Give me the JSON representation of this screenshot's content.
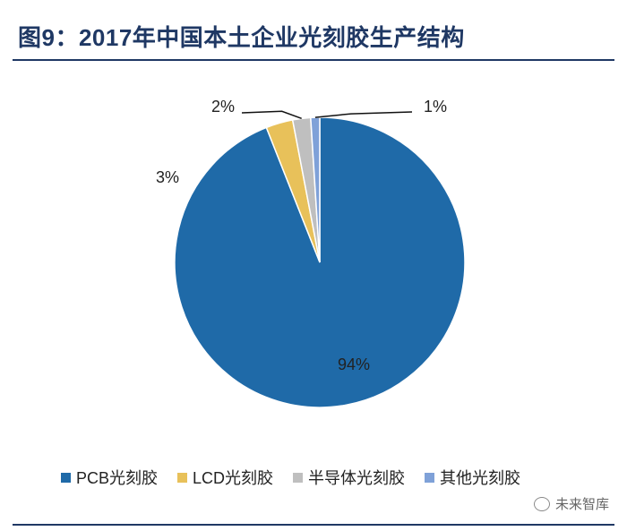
{
  "header": {
    "title": "图9：2017年中国本土企业光刻胶生产结构"
  },
  "chart_data": {
    "type": "pie",
    "title": "图9：2017年中国本土企业光刻胶生产结构",
    "slices": [
      {
        "label": "PCB光刻胶",
        "value": 94,
        "display": "94%",
        "color": "#1f6aa8"
      },
      {
        "label": "LCD光刻胶",
        "value": 3,
        "display": "3%",
        "color": "#e8c15a"
      },
      {
        "label": "半导体光刻胶",
        "value": 2,
        "display": "2%",
        "color": "#bfbfbf"
      },
      {
        "label": "其他光刻胶",
        "value": 1,
        "display": "1%",
        "color": "#7fa1d8"
      }
    ],
    "legend_position": "bottom"
  },
  "watermark": {
    "text": "未来智库",
    "icon": "wechat-icon"
  }
}
